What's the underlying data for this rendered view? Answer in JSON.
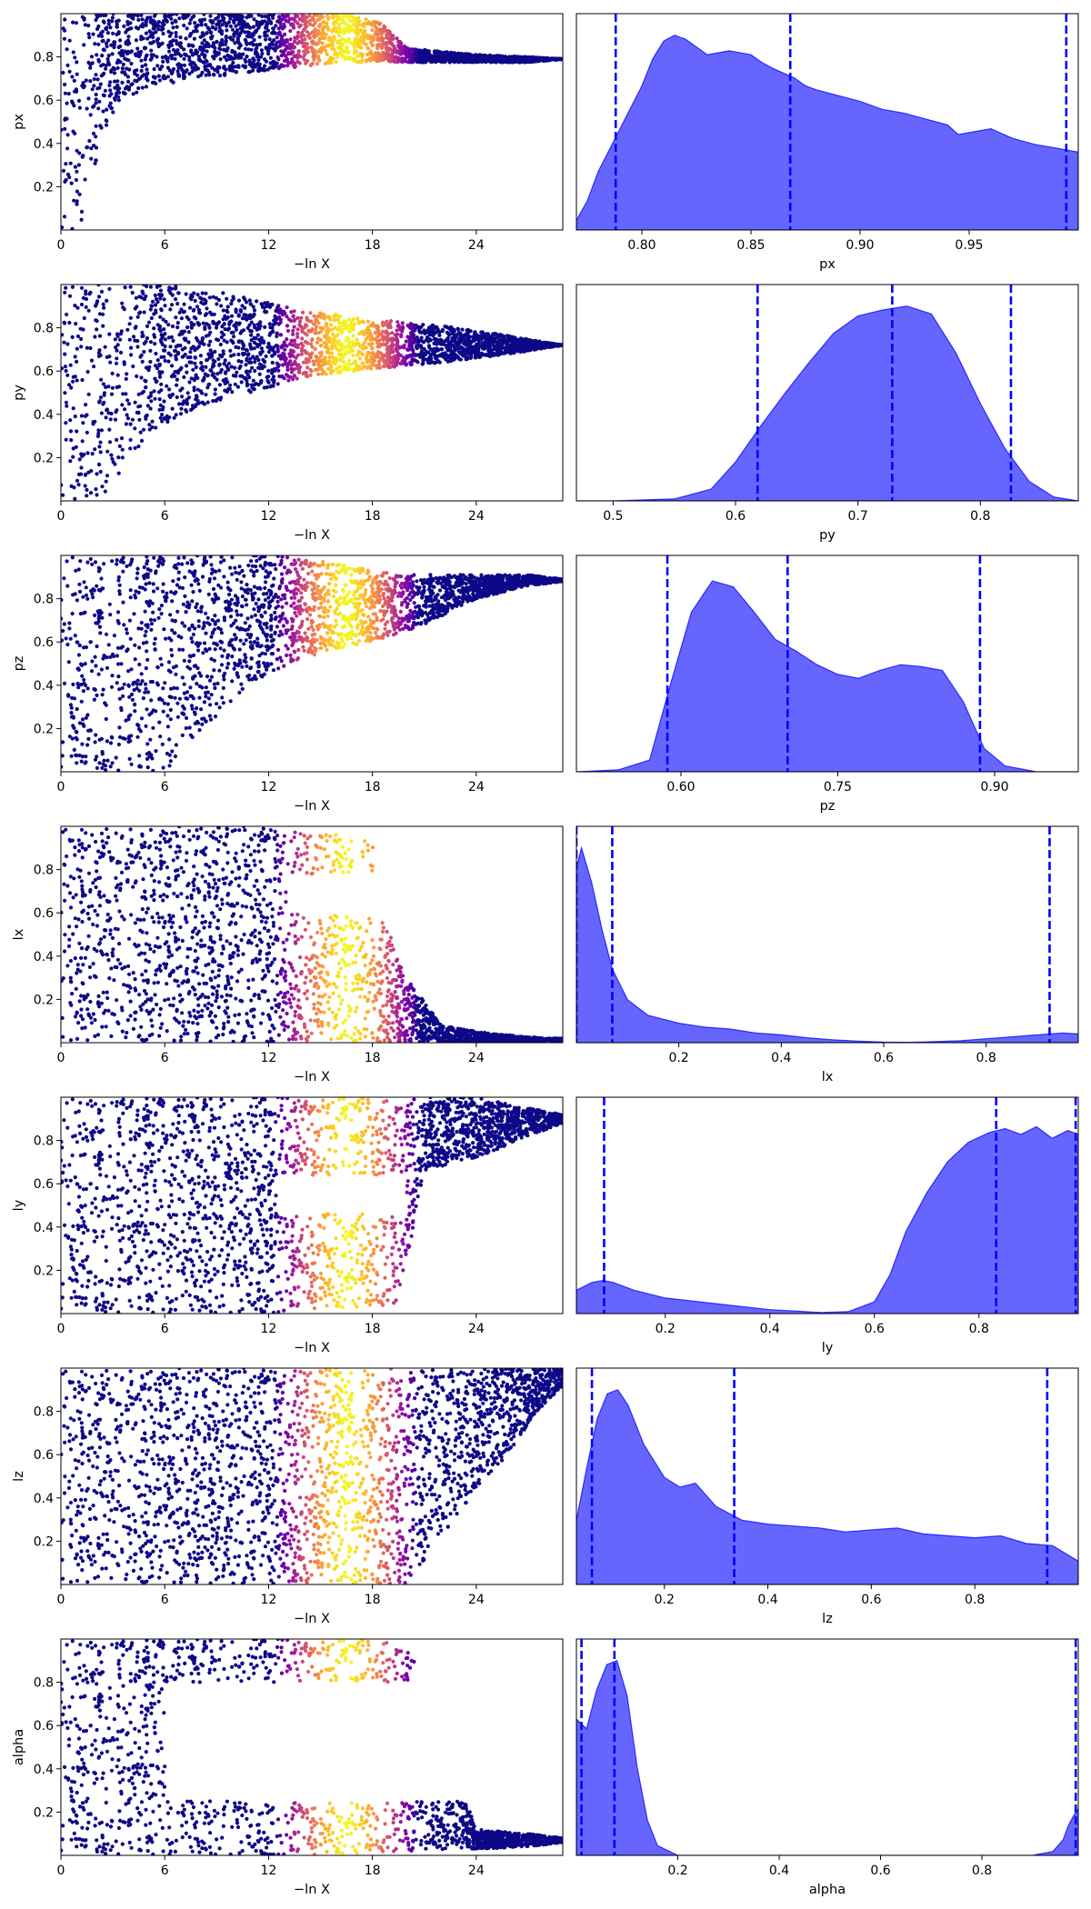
{
  "figure": {
    "background": "#ffffff",
    "scatter_colormap": "plasma",
    "kde_fill_color": "#0000ff",
    "kde_fill_alpha": 0.6,
    "quantile_line_color": "#0000ff",
    "quantile_line_style": "dashed"
  },
  "chart_data": [
    {
      "type": "scatter",
      "param": "px",
      "xlabel": "−ln X",
      "ylabel": "px",
      "xlim": [
        0,
        29
      ],
      "ylim": [
        0,
        1
      ],
      "xticks": [
        0,
        6,
        12,
        18,
        24
      ],
      "xtick_labels": [
        "0",
        "6",
        "12",
        "18",
        "24"
      ],
      "yticks": [
        0.2,
        0.4,
        0.6,
        0.8
      ],
      "ytick_labels": [
        "0.2",
        "0.4",
        "0.6",
        "0.8"
      ],
      "color_by": "x",
      "color_peak_x": 16.5,
      "envelope": [
        [
          0,
          0.0,
          1.0
        ],
        [
          1.0,
          0.0,
          1.0
        ],
        [
          1.5,
          0.12,
          1.0
        ],
        [
          2.0,
          0.3,
          1.0
        ],
        [
          2.6,
          0.48,
          1.0
        ],
        [
          3.5,
          0.6,
          1.0
        ],
        [
          5,
          0.66,
          1.0
        ],
        [
          8,
          0.7,
          1.0
        ],
        [
          12,
          0.74,
          1.0
        ],
        [
          16,
          0.77,
          1.0
        ],
        [
          18.5,
          0.78,
          0.96
        ],
        [
          20,
          0.775,
          0.84
        ],
        [
          24,
          0.775,
          0.81
        ],
        [
          27,
          0.775,
          0.8
        ],
        [
          29,
          0.79,
          0.79
        ]
      ]
    },
    {
      "type": "area",
      "param": "px",
      "xlabel": "px",
      "xlim": [
        0.77,
        1.0
      ],
      "xticks": [
        0.8,
        0.85,
        0.9,
        0.95
      ],
      "xtick_labels": [
        "0.80",
        "0.85",
        "0.90",
        "0.95"
      ],
      "x": [
        0.77,
        0.775,
        0.78,
        0.79,
        0.8,
        0.805,
        0.81,
        0.815,
        0.82,
        0.83,
        0.84,
        0.85,
        0.855,
        0.86,
        0.87,
        0.875,
        0.88,
        0.89,
        0.9,
        0.91,
        0.92,
        0.93,
        0.94,
        0.945,
        0.95,
        0.96,
        0.97,
        0.98,
        0.99,
        1.0
      ],
      "y": [
        0.05,
        0.15,
        0.3,
        0.52,
        0.74,
        0.88,
        0.97,
        1.0,
        0.98,
        0.9,
        0.92,
        0.9,
        0.86,
        0.83,
        0.78,
        0.74,
        0.72,
        0.69,
        0.66,
        0.62,
        0.6,
        0.57,
        0.54,
        0.49,
        0.5,
        0.52,
        0.47,
        0.44,
        0.42,
        0.4
      ],
      "quantiles": [
        0.788,
        0.868,
        0.9945
      ]
    },
    {
      "type": "scatter",
      "param": "py",
      "xlabel": "−ln X",
      "ylabel": "py",
      "xlim": [
        0,
        29
      ],
      "ylim": [
        0,
        1
      ],
      "xticks": [
        0,
        6,
        12,
        18,
        24
      ],
      "xtick_labels": [
        "0",
        "6",
        "12",
        "18",
        "24"
      ],
      "yticks": [
        0.2,
        0.4,
        0.6,
        0.8
      ],
      "ytick_labels": [
        "0.2",
        "0.4",
        "0.6",
        "0.8"
      ],
      "color_by": "x",
      "color_peak_x": 16.5,
      "envelope": [
        [
          0,
          0.0,
          1.0
        ],
        [
          2.5,
          0.0,
          1.0
        ],
        [
          3.5,
          0.15,
          1.0
        ],
        [
          5,
          0.3,
          1.0
        ],
        [
          7,
          0.4,
          1.0
        ],
        [
          10,
          0.48,
          0.95
        ],
        [
          14,
          0.57,
          0.88
        ],
        [
          18,
          0.61,
          0.84
        ],
        [
          22,
          0.64,
          0.81
        ],
        [
          24,
          0.66,
          0.79
        ],
        [
          26,
          0.68,
          0.76
        ],
        [
          27.5,
          0.7,
          0.74
        ],
        [
          29,
          0.72,
          0.72
        ]
      ]
    },
    {
      "type": "area",
      "param": "py",
      "xlabel": "py",
      "xlim": [
        0.47,
        0.88
      ],
      "xticks": [
        0.5,
        0.6,
        0.7,
        0.8
      ],
      "xtick_labels": [
        "0.5",
        "0.6",
        "0.7",
        "0.8"
      ],
      "x": [
        0.47,
        0.5,
        0.55,
        0.58,
        0.6,
        0.62,
        0.64,
        0.66,
        0.68,
        0.7,
        0.72,
        0.74,
        0.76,
        0.78,
        0.8,
        0.82,
        0.84,
        0.86,
        0.88
      ],
      "y": [
        0.0,
        0.0,
        0.01,
        0.06,
        0.2,
        0.38,
        0.55,
        0.71,
        0.86,
        0.95,
        0.98,
        1.0,
        0.96,
        0.76,
        0.5,
        0.27,
        0.1,
        0.02,
        0.0
      ],
      "quantiles": [
        0.618,
        0.728,
        0.825
      ]
    },
    {
      "type": "scatter",
      "param": "pz",
      "xlabel": "−ln X",
      "ylabel": "pz",
      "xlim": [
        0,
        29
      ],
      "ylim": [
        0,
        1
      ],
      "xticks": [
        0,
        6,
        12,
        18,
        24
      ],
      "xtick_labels": [
        "0",
        "6",
        "12",
        "18",
        "24"
      ],
      "yticks": [
        0.2,
        0.4,
        0.6,
        0.8
      ],
      "ytick_labels": [
        "0.2",
        "0.4",
        "0.6",
        "0.8"
      ],
      "color_by": "x",
      "color_peak_x": 16.5,
      "envelope": [
        [
          0,
          0.0,
          1.0
        ],
        [
          6,
          0.0,
          1.0
        ],
        [
          8,
          0.18,
          1.0
        ],
        [
          10,
          0.34,
          1.0
        ],
        [
          12,
          0.46,
          1.0
        ],
        [
          15,
          0.55,
          0.98
        ],
        [
          18,
          0.6,
          0.93
        ],
        [
          21,
          0.68,
          0.91
        ],
        [
          24,
          0.8,
          0.91
        ],
        [
          27,
          0.86,
          0.91
        ],
        [
          29,
          0.88,
          0.89
        ]
      ]
    },
    {
      "type": "area",
      "param": "pz",
      "xlabel": "pz",
      "xlim": [
        0.5,
        0.98
      ],
      "xticks": [
        0.6,
        0.75,
        0.9
      ],
      "xtick_labels": [
        "0.60",
        "0.75",
        "0.90"
      ],
      "x": [
        0.5,
        0.54,
        0.57,
        0.59,
        0.61,
        0.63,
        0.65,
        0.67,
        0.69,
        0.71,
        0.73,
        0.75,
        0.77,
        0.79,
        0.81,
        0.83,
        0.85,
        0.87,
        0.89,
        0.91,
        0.94,
        0.98
      ],
      "y": [
        0.0,
        0.01,
        0.06,
        0.45,
        0.82,
        0.98,
        0.95,
        0.82,
        0.68,
        0.62,
        0.55,
        0.5,
        0.48,
        0.52,
        0.55,
        0.54,
        0.52,
        0.36,
        0.12,
        0.03,
        0.0,
        0.0
      ],
      "quantiles": [
        0.587,
        0.702,
        0.886
      ]
    },
    {
      "type": "scatter",
      "param": "lx",
      "xlabel": "−ln X",
      "ylabel": "lx",
      "xlim": [
        0,
        29
      ],
      "ylim": [
        0,
        1
      ],
      "xticks": [
        0,
        6,
        12,
        18,
        24
      ],
      "xtick_labels": [
        "0",
        "6",
        "12",
        "18",
        "24"
      ],
      "yticks": [
        0.2,
        0.4,
        0.6,
        0.8
      ],
      "ytick_labels": [
        "0.2",
        "0.4",
        "0.6",
        "0.8"
      ],
      "color_by": "x",
      "color_peak_x": 16.5,
      "envelope": [
        [
          0,
          0.0,
          1.0
        ],
        [
          12,
          0.0,
          1.0
        ],
        [
          14,
          0.0,
          0.98
        ],
        [
          16,
          0.0,
          0.96
        ],
        [
          18,
          0.0,
          0.94
        ],
        [
          19,
          0.0,
          0.5
        ],
        [
          20,
          0.0,
          0.3
        ],
        [
          22,
          0.0,
          0.08
        ],
        [
          25,
          0.0,
          0.04
        ],
        [
          28,
          0.01,
          0.02
        ],
        [
          29,
          0.01,
          0.02
        ]
      ],
      "gap": [
        13,
        20,
        0.6,
        0.78
      ]
    },
    {
      "type": "area",
      "param": "lx",
      "xlabel": "lx",
      "xlim": [
        0.0,
        0.98
      ],
      "xticks": [
        0.2,
        0.4,
        0.6,
        0.8
      ],
      "xtick_labels": [
        "0.2",
        "0.4",
        "0.6",
        "0.8"
      ],
      "x": [
        0.0,
        0.01,
        0.03,
        0.05,
        0.07,
        0.1,
        0.14,
        0.2,
        0.25,
        0.3,
        0.35,
        0.4,
        0.45,
        0.5,
        0.55,
        0.6,
        0.65,
        0.7,
        0.75,
        0.8,
        0.85,
        0.9,
        0.95,
        0.98
      ],
      "y": [
        0.9,
        1.0,
        0.82,
        0.58,
        0.38,
        0.22,
        0.14,
        0.1,
        0.08,
        0.07,
        0.05,
        0.04,
        0.025,
        0.015,
        0.008,
        0.003,
        0.002,
        0.005,
        0.01,
        0.02,
        0.03,
        0.04,
        0.05,
        0.045
      ],
      "quantiles": [
        0.07,
        0.924,
        0.0
      ]
    },
    {
      "type": "scatter",
      "param": "ly",
      "xlabel": "−ln X",
      "ylabel": "ly",
      "xlim": [
        0,
        29
      ],
      "ylim": [
        0,
        1
      ],
      "xticks": [
        0,
        6,
        12,
        18,
        24
      ],
      "xtick_labels": [
        "0",
        "6",
        "12",
        "18",
        "24"
      ],
      "yticks": [
        0.2,
        0.4,
        0.6,
        0.8
      ],
      "ytick_labels": [
        "0.2",
        "0.4",
        "0.6",
        "0.8"
      ],
      "color_by": "x",
      "color_peak_x": 16.5,
      "envelope": [
        [
          0,
          0.0,
          1.0
        ],
        [
          12,
          0.0,
          1.0
        ],
        [
          14,
          0.02,
          1.0
        ],
        [
          16,
          0.02,
          1.0
        ],
        [
          18,
          0.02,
          1.0
        ],
        [
          19.5,
          0.05,
          1.0
        ],
        [
          21,
          0.66,
          1.0
        ],
        [
          24,
          0.72,
          1.0
        ],
        [
          27,
          0.82,
          0.95
        ],
        [
          29,
          0.88,
          0.92
        ]
      ],
      "gap": [
        12.5,
        20,
        0.46,
        0.64
      ]
    },
    {
      "type": "area",
      "param": "ly",
      "xlabel": "ly",
      "xlim": [
        0.03,
        0.99
      ],
      "xticks": [
        0.2,
        0.4,
        0.6,
        0.8
      ],
      "xtick_labels": [
        "0.2",
        "0.4",
        "0.6",
        "0.8"
      ],
      "x": [
        0.03,
        0.06,
        0.08,
        0.1,
        0.14,
        0.2,
        0.3,
        0.4,
        0.5,
        0.55,
        0.6,
        0.63,
        0.66,
        0.7,
        0.74,
        0.78,
        0.82,
        0.85,
        0.88,
        0.91,
        0.94,
        0.97,
        0.99
      ],
      "y": [
        0.12,
        0.16,
        0.17,
        0.16,
        0.12,
        0.08,
        0.05,
        0.02,
        0.005,
        0.01,
        0.06,
        0.2,
        0.42,
        0.62,
        0.78,
        0.88,
        0.93,
        0.95,
        0.92,
        0.96,
        0.9,
        0.94,
        0.92
      ],
      "quantiles": [
        0.083,
        0.833,
        0.985
      ]
    },
    {
      "type": "scatter",
      "param": "lz",
      "xlabel": "−ln X",
      "ylabel": "lz",
      "xlim": [
        0,
        29
      ],
      "ylim": [
        0,
        1
      ],
      "xticks": [
        0,
        6,
        12,
        18,
        24
      ],
      "xtick_labels": [
        "0",
        "6",
        "12",
        "18",
        "24"
      ],
      "yticks": [
        0.2,
        0.4,
        0.6,
        0.8
      ],
      "ytick_labels": [
        "0.2",
        "0.4",
        "0.6",
        "0.8"
      ],
      "color_by": "x",
      "color_peak_x": 16.5,
      "envelope": [
        [
          0,
          0.0,
          1.0
        ],
        [
          20,
          0.0,
          1.0
        ],
        [
          21,
          0.1,
          1.0
        ],
        [
          22.5,
          0.28,
          1.0
        ],
        [
          24,
          0.44,
          1.0
        ],
        [
          26,
          0.62,
          1.0
        ],
        [
          27.5,
          0.8,
          1.0
        ],
        [
          29,
          0.92,
          1.0
        ]
      ]
    },
    {
      "type": "area",
      "param": "lz",
      "xlabel": "lz",
      "xlim": [
        0.03,
        1.0
      ],
      "xticks": [
        0.2,
        0.4,
        0.6,
        0.8
      ],
      "xtick_labels": [
        "0.2",
        "0.4",
        "0.6",
        "0.8"
      ],
      "x": [
        0.03,
        0.05,
        0.07,
        0.09,
        0.11,
        0.13,
        0.16,
        0.2,
        0.23,
        0.26,
        0.3,
        0.35,
        0.4,
        0.45,
        0.5,
        0.55,
        0.6,
        0.65,
        0.7,
        0.75,
        0.8,
        0.85,
        0.9,
        0.95,
        1.0
      ],
      "y": [
        0.33,
        0.6,
        0.85,
        0.98,
        1.0,
        0.92,
        0.72,
        0.55,
        0.5,
        0.52,
        0.4,
        0.33,
        0.31,
        0.3,
        0.29,
        0.27,
        0.28,
        0.29,
        0.26,
        0.25,
        0.24,
        0.25,
        0.21,
        0.2,
        0.12
      ],
      "quantiles": [
        0.06,
        0.335,
        0.94
      ]
    },
    {
      "type": "scatter",
      "param": "alpha",
      "xlabel": "−ln X",
      "ylabel": "alpha",
      "xlim": [
        0,
        29
      ],
      "ylim": [
        0,
        1
      ],
      "xticks": [
        0,
        6,
        12,
        18,
        24
      ],
      "xtick_labels": [
        "0",
        "6",
        "12",
        "18",
        "24"
      ],
      "yticks": [
        0.2,
        0.4,
        0.6,
        0.8
      ],
      "ytick_labels": [
        "0.2",
        "0.4",
        "0.6",
        "0.8"
      ],
      "color_by": "x",
      "color_peak_x": 16.5,
      "envelope": [
        [
          0,
          0.0,
          1.0
        ],
        [
          8,
          0.0,
          1.0
        ],
        [
          10,
          0.0,
          1.0
        ],
        [
          12,
          0.0,
          1.0
        ],
        [
          14,
          0.0,
          1.0
        ],
        [
          17,
          0.0,
          1.0
        ],
        [
          20,
          0.02,
          1.0
        ],
        [
          24,
          0.03,
          0.12
        ],
        [
          27,
          0.04,
          0.1
        ],
        [
          29,
          0.06,
          0.08
        ]
      ],
      "gap": [
        6,
        29,
        0.25,
        0.8
      ]
    },
    {
      "type": "area",
      "param": "alpha",
      "xlabel": "alpha",
      "xlim": [
        0.0,
        0.99
      ],
      "xticks": [
        0.2,
        0.4,
        0.6,
        0.8
      ],
      "xtick_labels": [
        "0.2",
        "0.4",
        "0.6",
        "0.8"
      ],
      "x": [
        0.0,
        0.02,
        0.04,
        0.06,
        0.08,
        0.1,
        0.12,
        0.14,
        0.16,
        0.2,
        0.4,
        0.6,
        0.8,
        0.9,
        0.94,
        0.96,
        0.97,
        0.98,
        0.99
      ],
      "y": [
        0.7,
        0.65,
        0.85,
        0.98,
        1.0,
        0.82,
        0.45,
        0.18,
        0.05,
        0.0,
        0.0,
        0.0,
        0.0,
        0.0,
        0.02,
        0.08,
        0.15,
        0.2,
        0.24
      ],
      "quantiles": [
        0.01,
        0.075,
        0.985
      ]
    }
  ]
}
